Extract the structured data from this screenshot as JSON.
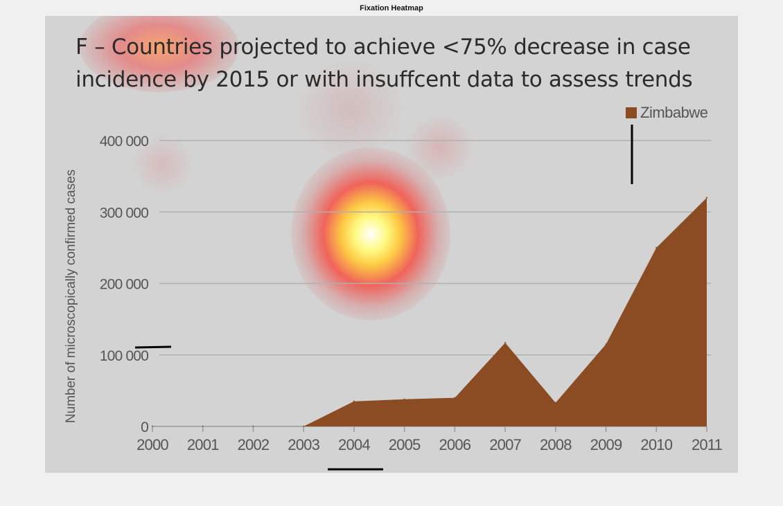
{
  "window_title": "Fixation Heatmap",
  "colors": {
    "area_fill": "#8b4c24",
    "panel_bg": "#d3d3d3",
    "gridline": "#b0b0b0",
    "text": "#555555"
  },
  "chart_data": {
    "type": "area",
    "title": "F – Countries projected to achieve <75% decrease in case incidence by 2015 or with insuffcent data to assess trends",
    "ylabel": "Number of microscopically confirmed cases",
    "xlabel": "",
    "x": [
      2000,
      2001,
      2002,
      2003,
      2004,
      2005,
      2006,
      2007,
      2008,
      2009,
      2010,
      2011
    ],
    "x_tick_labels": [
      "2000",
      "2001",
      "2002",
      "2003",
      "2004",
      "2005",
      "2006",
      "2007",
      "2008",
      "2009",
      "2010",
      "2011"
    ],
    "y_ticks": [
      0,
      100000,
      200000,
      300000,
      400000
    ],
    "y_tick_labels": [
      "0",
      "100 000",
      "200 000",
      "300 000",
      "400 000"
    ],
    "ylim": [
      0,
      400000
    ],
    "grid": true,
    "legend_position": "top-right",
    "series": [
      {
        "name": "Zimbabwe",
        "values": [
          0,
          0,
          0,
          0,
          35000,
          38000,
          40000,
          117000,
          33000,
          115000,
          250000,
          320000
        ]
      }
    ]
  }
}
